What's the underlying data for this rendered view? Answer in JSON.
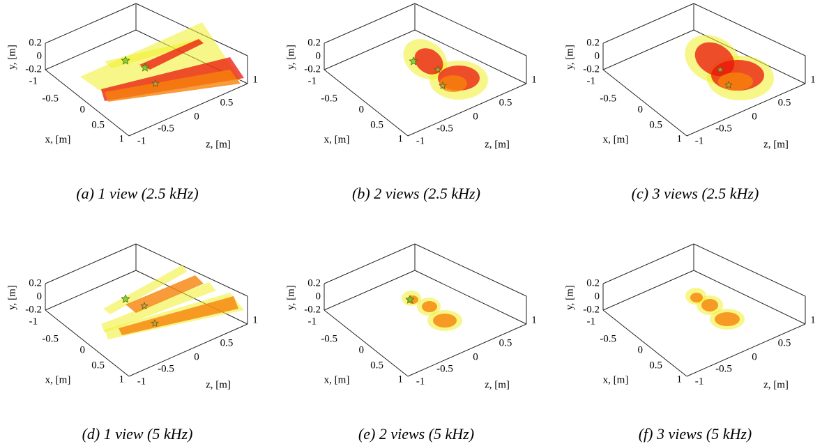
{
  "axes": {
    "x_label": "x, [m]",
    "y_label": "y, [m]",
    "z_label": "z, [m]",
    "x_ticks": [
      "-1",
      "-0.5",
      "0",
      "0.5",
      "1"
    ],
    "y_ticks": [
      "0.2",
      "0",
      "-0.2"
    ],
    "z_ticks": [
      "-1",
      "-0.5",
      "0",
      "0.5",
      "1"
    ]
  },
  "panels": [
    {
      "caption": "(a) 1 view (2.5 kHz)"
    },
    {
      "caption": "(b) 2 views (2.5 kHz)"
    },
    {
      "caption": "(c) 3 views (2.5 kHz)"
    },
    {
      "caption": "(d) 1 view (5 kHz)"
    },
    {
      "caption": "(e) 2 views (5 kHz)"
    },
    {
      "caption": "(f) 3 views (5 kHz)"
    }
  ]
}
